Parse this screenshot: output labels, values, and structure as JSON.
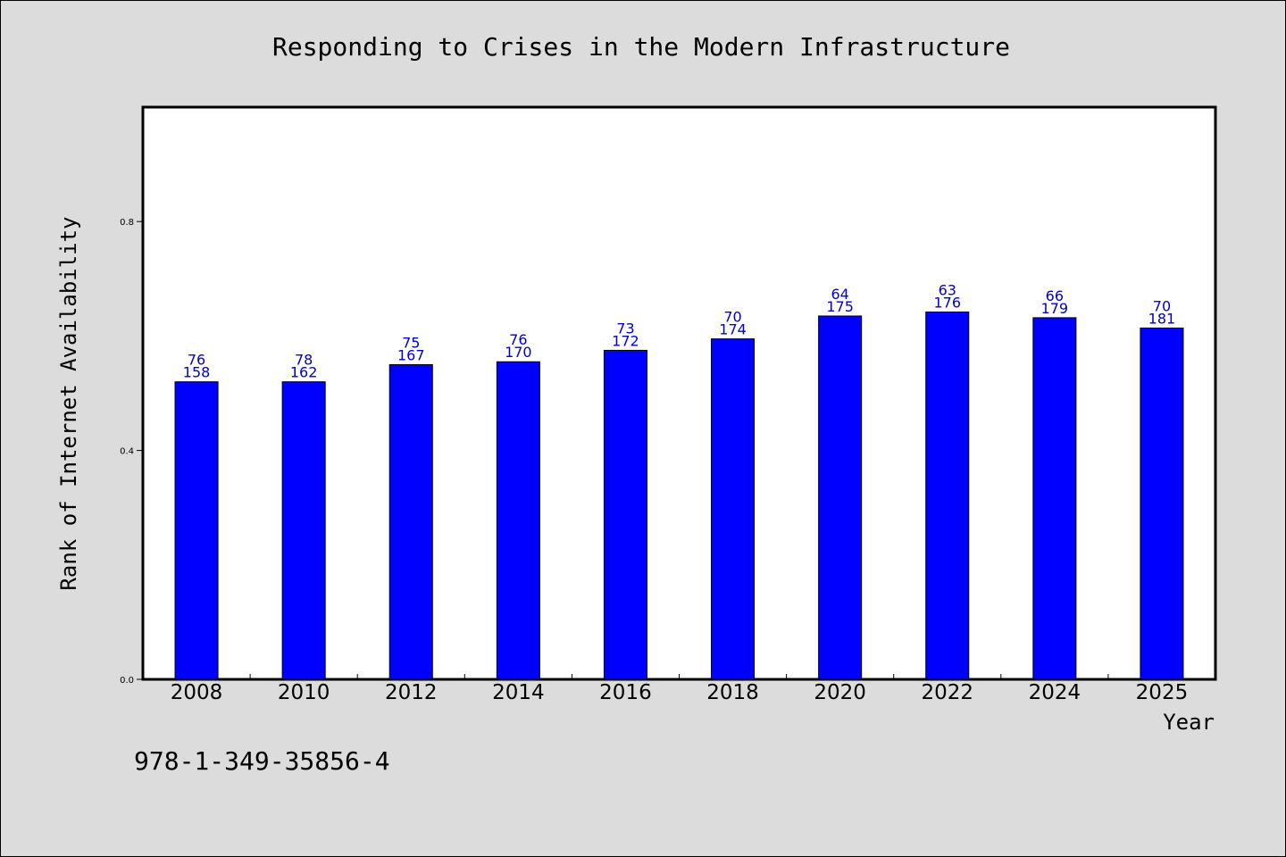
{
  "chart_data": {
    "type": "bar",
    "title": "Responding to Crises in the Modern Infrastructure",
    "xlabel": "Year",
    "ylabel": "Rank of Internet Availability",
    "categories": [
      "2008",
      "2010",
      "2012",
      "2014",
      "2016",
      "2018",
      "2020",
      "2022",
      "2024",
      "2025"
    ],
    "series": [
      {
        "values": [
          0.52,
          0.52,
          0.55,
          0.555,
          0.575,
          0.595,
          0.635,
          0.642,
          0.632,
          0.614
        ],
        "label_top": [
          "76",
          "78",
          "75",
          "76",
          "73",
          "70",
          "64",
          "63",
          "66",
          "70"
        ],
        "label_bottom": [
          "158",
          "162",
          "167",
          "170",
          "172",
          "174",
          "175",
          "176",
          "179",
          "181"
        ]
      }
    ],
    "yticks": [
      "0.0",
      "0.4",
      "0.8"
    ],
    "ylim": [
      0,
      1.0
    ],
    "grid": false,
    "bar_color": "#0000ff",
    "label_color": "#0000c8"
  },
  "footer": {
    "code": "978-1-349-35856-4"
  }
}
